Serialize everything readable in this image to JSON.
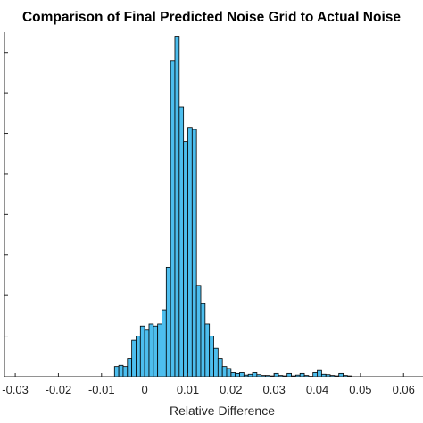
{
  "chart_data": {
    "type": "bar",
    "title": "Comparison of Final Predicted Noise Grid to Actual Noise",
    "xlabel": "Relative Difference",
    "ylabel": "",
    "xlim": [
      -0.0325,
      0.0645
    ],
    "ylim": [
      0,
      850
    ],
    "bin_width": 0.001,
    "x_ticks": [
      -0.03,
      -0.02,
      -0.01,
      0,
      0.01,
      0.02,
      0.03,
      0.04,
      0.05,
      0.06
    ],
    "x_tick_labels": [
      "-0.03",
      "-0.02",
      "-0.01",
      "0",
      "0.01",
      "0.02",
      "0.03",
      "0.04",
      "0.05",
      "0.06"
    ],
    "y_ticks": [
      0,
      100,
      200,
      300,
      400,
      500,
      600,
      700,
      800
    ],
    "bar_color": "#4DBEEE",
    "bin_centers": [
      -0.0065,
      -0.0055,
      -0.0045,
      -0.0035,
      -0.0025,
      -0.0015,
      -0.0005,
      0.0005,
      0.0015,
      0.0025,
      0.0035,
      0.0045,
      0.0055,
      0.0065,
      0.0075,
      0.0085,
      0.0095,
      0.0105,
      0.0115,
      0.0125,
      0.0135,
      0.0145,
      0.0155,
      0.0165,
      0.0175,
      0.0185,
      0.0195,
      0.0205,
      0.0215,
      0.0225,
      0.0235,
      0.0245,
      0.0255,
      0.0265,
      0.0275,
      0.0285,
      0.0295,
      0.0305,
      0.0315,
      0.0325,
      0.0335,
      0.0345,
      0.0355,
      0.0365,
      0.0375,
      0.0385,
      0.0395,
      0.0405,
      0.0415,
      0.0425,
      0.0435,
      0.0445,
      0.0455,
      0.0465,
      0.0475
    ],
    "values": [
      25,
      28,
      25,
      45,
      90,
      100,
      125,
      115,
      130,
      125,
      130,
      165,
      270,
      780,
      840,
      665,
      580,
      615,
      610,
      225,
      180,
      130,
      100,
      70,
      45,
      25,
      20,
      10,
      8,
      10,
      4,
      6,
      10,
      5,
      3,
      3,
      2,
      8,
      3,
      2,
      8,
      2,
      4,
      8,
      3,
      1,
      10,
      15,
      6,
      5,
      3,
      2,
      8,
      3,
      2
    ]
  }
}
